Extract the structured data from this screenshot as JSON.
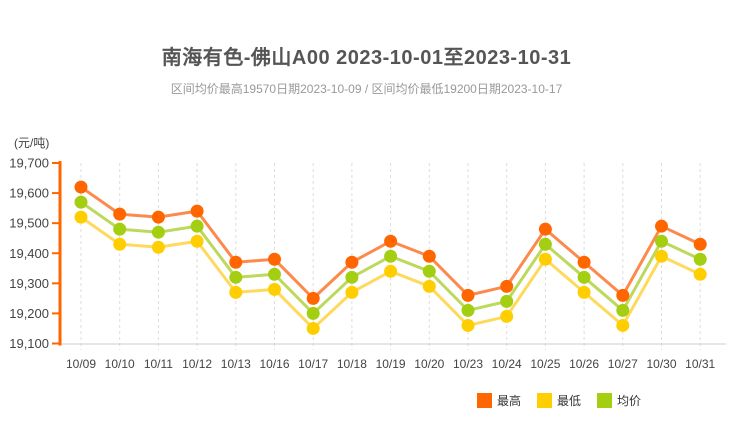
{
  "title": "南海有色-佛山A00 2023-10-01至2023-10-31",
  "subtitle": "区间均价最高19570日期2023-10-09 / 区间均价最低19200日期2023-10-17",
  "y_axis_unit": "(元/吨)",
  "chart_data": {
    "type": "line",
    "title": "南海有色-佛山A00 2023-10-01至2023-10-31",
    "subtitle": "区间均价最高19570日期2023-10-09 / 区间均价最低19200日期2023-10-17",
    "ylabel": "(元/吨)",
    "x": [
      "10/09",
      "10/10",
      "10/11",
      "10/12",
      "10/13",
      "10/16",
      "10/17",
      "10/18",
      "10/19",
      "10/20",
      "10/23",
      "10/24",
      "10/25",
      "10/26",
      "10/27",
      "10/30",
      "10/31"
    ],
    "series": [
      {
        "name": "最高",
        "point_color": "#FF6600",
        "line_color": "#FC8A4C",
        "values": [
          19620,
          19530,
          19520,
          19540,
          19370,
          19380,
          19250,
          19370,
          19440,
          19390,
          19260,
          19290,
          19480,
          19370,
          19260,
          19490,
          19430
        ]
      },
      {
        "name": "最低",
        "point_color": "#FFCE00",
        "line_color": "#FFD95C",
        "values": [
          19520,
          19430,
          19420,
          19440,
          19270,
          19280,
          19150,
          19270,
          19340,
          19290,
          19160,
          19190,
          19380,
          19270,
          19160,
          19390,
          19330
        ]
      },
      {
        "name": "均价",
        "point_color": "#A3CE12",
        "line_color": "#BCD95C",
        "values": [
          19570,
          19480,
          19470,
          19490,
          19320,
          19330,
          19200,
          19320,
          19390,
          19340,
          19210,
          19240,
          19430,
          19320,
          19210,
          19440,
          19380
        ]
      }
    ],
    "ylim": [
      19100,
      19700
    ],
    "y_ticks": [
      19100,
      19200,
      19300,
      19400,
      19500,
      19600,
      19700
    ],
    "y_tick_labels": [
      "19,100",
      "19,200",
      "19,300",
      "19,400",
      "19,500",
      "19,600",
      "19,700"
    ],
    "grid": "vertical-dashed",
    "legend_position": "bottom-right",
    "legend": [
      "最高",
      "最低",
      "均价"
    ]
  },
  "colors": {
    "y_axis": "#FF6600",
    "x_axis_line": "#CCCCCC",
    "gridline": "#DDDDDD",
    "title_text": "#555555",
    "subtitle_text": "#999999",
    "axis_text": "#444444",
    "legend_text": "#333333"
  }
}
